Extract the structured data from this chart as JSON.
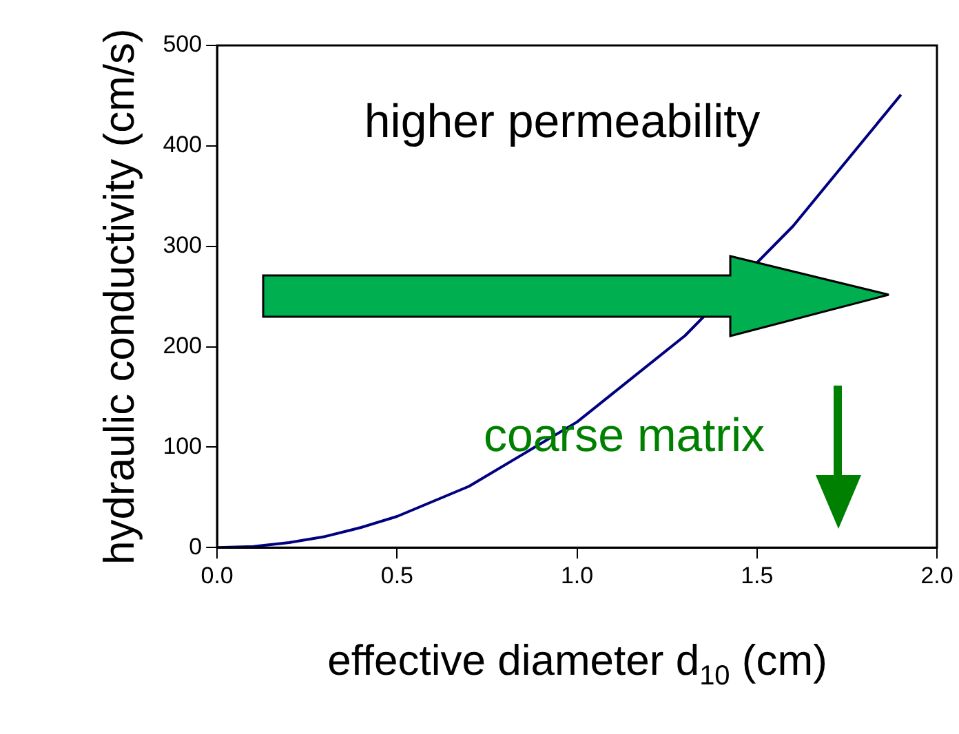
{
  "chart_data": {
    "type": "line",
    "xlabel": "effective diameter d$_{10}$ (cm)",
    "ylabel": "hydraulic conductivity (cm/s)",
    "x": [
      0,
      0.1,
      0.2,
      0.3,
      0.4,
      0.5,
      0.7,
      1.0,
      1.3,
      1.6,
      1.9
    ],
    "series": [
      {
        "color": "#000080",
        "values": [
          0,
          1,
          5,
          11,
          20,
          31,
          61,
          125,
          211,
          320,
          451
        ]
      }
    ],
    "xlim": [
      0,
      2
    ],
    "xticks": [
      {
        "value": 0,
        "label": "0.0"
      },
      {
        "value": 0.5,
        "label": "0.5"
      },
      {
        "value": 1,
        "label": "1.0"
      },
      {
        "value": 1.5,
        "label": "1.5"
      },
      {
        "value": 2,
        "label": "2.0"
      }
    ],
    "ylim": [
      0,
      500
    ],
    "yticks": [
      0,
      100,
      200,
      300,
      400,
      500
    ],
    "grid": false,
    "legend": false,
    "marker": "none",
    "line_style": "solid",
    "annotations": [
      "higher permeability",
      "coarse matrix"
    ]
  }
}
